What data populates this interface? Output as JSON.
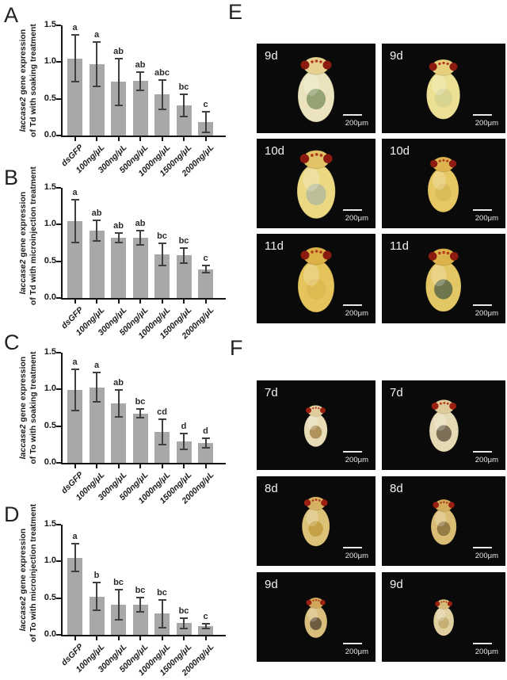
{
  "figure": {
    "left_column_panels": [
      "A",
      "B",
      "C",
      "D"
    ],
    "right_column_panels": [
      "E",
      "F"
    ]
  },
  "chart_data": [
    {
      "type": "bar",
      "panel": "A",
      "ylabel_line1_italic": "laccase2",
      "ylabel_line1_rest": " gene expression",
      "ylabel_line2": "of Td with soaking treatment",
      "categories": [
        "dsGFP",
        "100ng/μL",
        "300ng/μL",
        "500ng/μL",
        "1000ng/μL",
        "1500ng/μL",
        "2000ng/μL"
      ],
      "values": [
        1.05,
        0.97,
        0.73,
        0.74,
        0.56,
        0.41,
        0.18
      ],
      "errors": [
        0.32,
        0.3,
        0.32,
        0.12,
        0.2,
        0.15,
        0.14
      ],
      "sig_letters": [
        "a",
        "a",
        "ab",
        "ab",
        "abc",
        "bc",
        "c"
      ],
      "ylim": [
        0,
        1.5
      ],
      "yticks": [
        0.0,
        0.5,
        1.0,
        1.5
      ],
      "bar_color": "#a8a8a8",
      "error_color": "#3f3f3f",
      "legend": "none",
      "grid": "off"
    },
    {
      "type": "bar",
      "panel": "B",
      "ylabel_line1_italic": "laccase2",
      "ylabel_line1_rest": " gene expression",
      "ylabel_line2": "of Td with microinjection treatment",
      "categories": [
        "dsGFP",
        "100ng/μL",
        "300ng/μL",
        "500ng/μL",
        "1000ng/μL",
        "1500ng/μL",
        "2000ng/μL"
      ],
      "values": [
        1.05,
        0.92,
        0.82,
        0.82,
        0.59,
        0.58,
        0.39
      ],
      "errors": [
        0.29,
        0.14,
        0.06,
        0.1,
        0.15,
        0.1,
        0.05
      ],
      "sig_letters": [
        "a",
        "ab",
        "ab",
        "ab",
        "bc",
        "bc",
        "c"
      ],
      "ylim": [
        0,
        1.5
      ],
      "yticks": [
        0.0,
        0.5,
        1.0,
        1.5
      ],
      "bar_color": "#a8a8a8",
      "error_color": "#3f3f3f",
      "legend": "none",
      "grid": "off"
    },
    {
      "type": "bar",
      "panel": "C",
      "ylabel_line1_italic": "laccase2",
      "ylabel_line1_rest": " gene expression",
      "ylabel_line2": "of To with soaking treatment",
      "categories": [
        "dsGFP",
        "100ng/μL",
        "300ng/μL",
        "500ng/μL",
        "1000ng/μL",
        "1500ng/μL",
        "2000ng/μL"
      ],
      "values": [
        0.99,
        1.03,
        0.81,
        0.67,
        0.42,
        0.29,
        0.27
      ],
      "errors": [
        0.28,
        0.2,
        0.18,
        0.06,
        0.17,
        0.11,
        0.06
      ],
      "sig_letters": [
        "a",
        "a",
        "ab",
        "bc",
        "cd",
        "d",
        "d"
      ],
      "ylim": [
        0,
        1.5
      ],
      "yticks": [
        0.0,
        0.5,
        1.0,
        1.5
      ],
      "bar_color": "#a8a8a8",
      "error_color": "#3f3f3f",
      "legend": "none",
      "grid": "off"
    },
    {
      "type": "bar",
      "panel": "D",
      "ylabel_line1_italic": "laccase2",
      "ylabel_line1_rest": " gene expression",
      "ylabel_line2": "of To with microinjection treatment",
      "categories": [
        "dsGFP",
        "100ng/μL",
        "300ng/μL",
        "500ng/μL",
        "1000ng/μL",
        "1500ng/μL",
        "2000ng/μL"
      ],
      "values": [
        1.05,
        0.52,
        0.41,
        0.41,
        0.29,
        0.16,
        0.12
      ],
      "errors": [
        0.19,
        0.19,
        0.21,
        0.1,
        0.19,
        0.07,
        0.03
      ],
      "sig_letters": [
        "a",
        "b",
        "bc",
        "bc",
        "bc",
        "bc",
        "c"
      ],
      "ylim": [
        0,
        1.5
      ],
      "yticks": [
        0.0,
        0.5,
        1.0,
        1.5
      ],
      "bar_color": "#a8a8a8",
      "error_color": "#3f3f3f",
      "legend": "none",
      "grid": "off"
    }
  ],
  "photo_panels": [
    {
      "label": "E",
      "tiles": [
        {
          "day": "9d",
          "scale_label": "200μm",
          "body": "#eae3bd",
          "head": "#e6d28e",
          "patch": "#87986a",
          "eye": "#8b1b10",
          "size": 1.0
        },
        {
          "day": "9d",
          "scale_label": "200μm",
          "body": "#ece094",
          "head": "#e7d07c",
          "patch": "#d4d28f",
          "eye": "#8b1b10",
          "size": 0.92
        },
        {
          "day": "10d",
          "scale_label": "200μm",
          "body": "#ead883",
          "head": "#e2c366",
          "patch": "#b5bb9a",
          "eye": "#8b1b10",
          "size": 1.05
        },
        {
          "day": "10d",
          "scale_label": "200μm",
          "body": "#e6c763",
          "head": "#deb44e",
          "patch": "#d8b955",
          "eye": "#8b1b10",
          "size": 0.85
        },
        {
          "day": "11d",
          "scale_label": "200μm",
          "body": "#e5c45c",
          "head": "#dcb145",
          "patch": "#ddba50",
          "eye": "#8b1b10",
          "size": 1.0
        },
        {
          "day": "11d",
          "scale_label": "200μm",
          "body": "#e4c765",
          "head": "#dcb24a",
          "patch": "#5f6b4a",
          "eye": "#8b1b10",
          "size": 0.97
        }
      ]
    },
    {
      "label": "F",
      "tiles": [
        {
          "day": "7d",
          "scale_label": "200μm",
          "body": "#e7dcb6",
          "head": "#e1cd9c",
          "patch": "#a8894f",
          "eye": "#9c2012",
          "size": 0.64
        },
        {
          "day": "7d",
          "scale_label": "200μm",
          "body": "#e6dab4",
          "head": "#dfcb9a",
          "patch": "#6e5f4a",
          "eye": "#9c2012",
          "size": 0.8
        },
        {
          "day": "8d",
          "scale_label": "200μm",
          "body": "#dcc279",
          "head": "#d5b161",
          "patch": "#c29c3e",
          "eye": "#9c2012",
          "size": 0.76
        },
        {
          "day": "8d",
          "scale_label": "200μm",
          "body": "#d9bd74",
          "head": "#d1ad5c",
          "patch": "#8a7340",
          "eye": "#9c2012",
          "size": 0.7
        },
        {
          "day": "9d",
          "scale_label": "200μm",
          "body": "#d9be7c",
          "head": "#cfa85a",
          "patch": "#5e4e38",
          "eye": "#9c2012",
          "size": 0.62
        },
        {
          "day": "9d",
          "scale_label": "200μm",
          "body": "#e0cf9f",
          "head": "#d7bb7a",
          "patch": "#c3ab6e",
          "eye": "#9c2012",
          "size": 0.56
        }
      ]
    }
  ]
}
